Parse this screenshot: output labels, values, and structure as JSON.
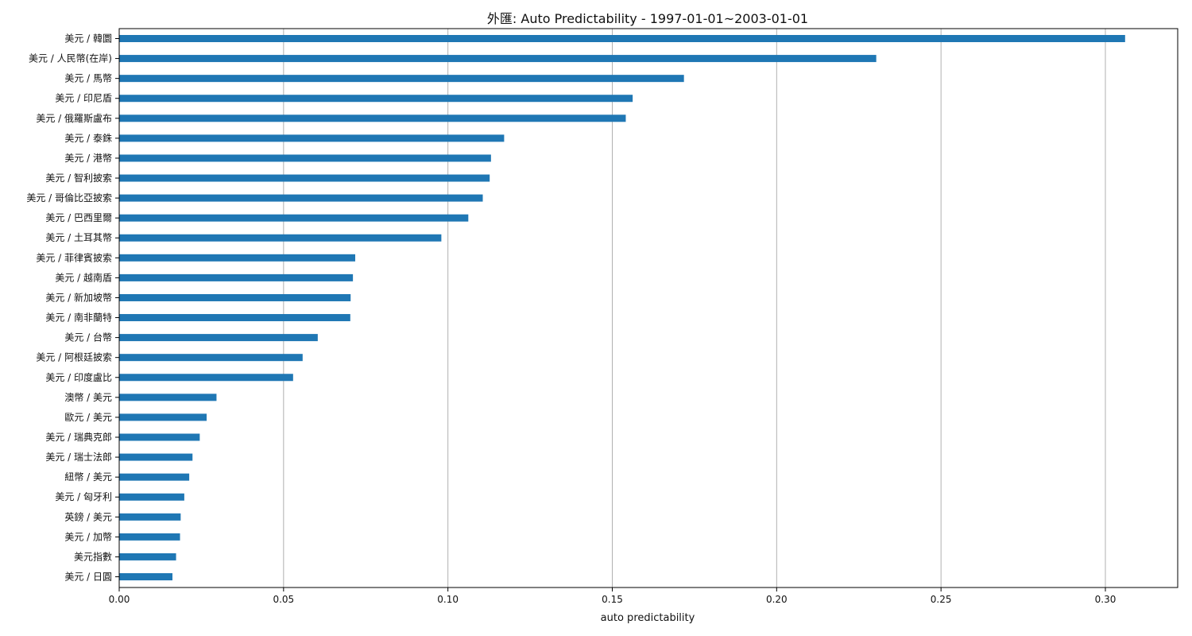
{
  "chart_data": {
    "type": "bar",
    "orientation": "horizontal",
    "title": "外匯: Auto Predictability - 1997-01-01~2003-01-01",
    "xlabel": "auto predictability",
    "ylabel": "",
    "xlim": [
      0,
      0.322
    ],
    "xticks": [
      0.0,
      0.05,
      0.1,
      0.15,
      0.2,
      0.25,
      0.3
    ],
    "xtick_labels": [
      "0.00",
      "0.05",
      "0.10",
      "0.15",
      "0.20",
      "0.25",
      "0.30"
    ],
    "grid": "vertical",
    "bar_color": "#1f77b4",
    "categories": [
      "美元 / 韓圜",
      "美元 / 人民幣(在岸)",
      "美元 / 馬幣",
      "美元 / 印尼盾",
      "美元 / 俄羅斯盧布",
      "美元 / 泰銖",
      "美元 / 港幣",
      "美元 / 智利披索",
      "美元 / 哥倫比亞披索",
      "美元 / 巴西里爾",
      "美元 / 土耳其幣",
      "美元 / 菲律賓披索",
      "美元 / 越南盾",
      "美元 / 新加坡幣",
      "美元 / 南非蘭特",
      "美元 / 台幣",
      "美元 / 阿根廷披索",
      "美元 / 印度盧比",
      "澳幣 / 美元",
      "歐元 / 美元",
      "美元 / 瑞典克郎",
      "美元 / 瑞士法郎",
      "紐幣 / 美元",
      "美元 / 匈牙利",
      "英鎊 / 美元",
      "美元 / 加幣",
      "美元指數",
      "美元 / 日圓"
    ],
    "values": [
      0.306,
      0.2303,
      0.1718,
      0.1562,
      0.1541,
      0.1171,
      0.1131,
      0.1127,
      0.1106,
      0.1062,
      0.098,
      0.0718,
      0.0711,
      0.0704,
      0.0703,
      0.0604,
      0.0558,
      0.0529,
      0.0296,
      0.0266,
      0.0245,
      0.0223,
      0.0213,
      0.0198,
      0.0187,
      0.0185,
      0.0173,
      0.0162
    ]
  }
}
